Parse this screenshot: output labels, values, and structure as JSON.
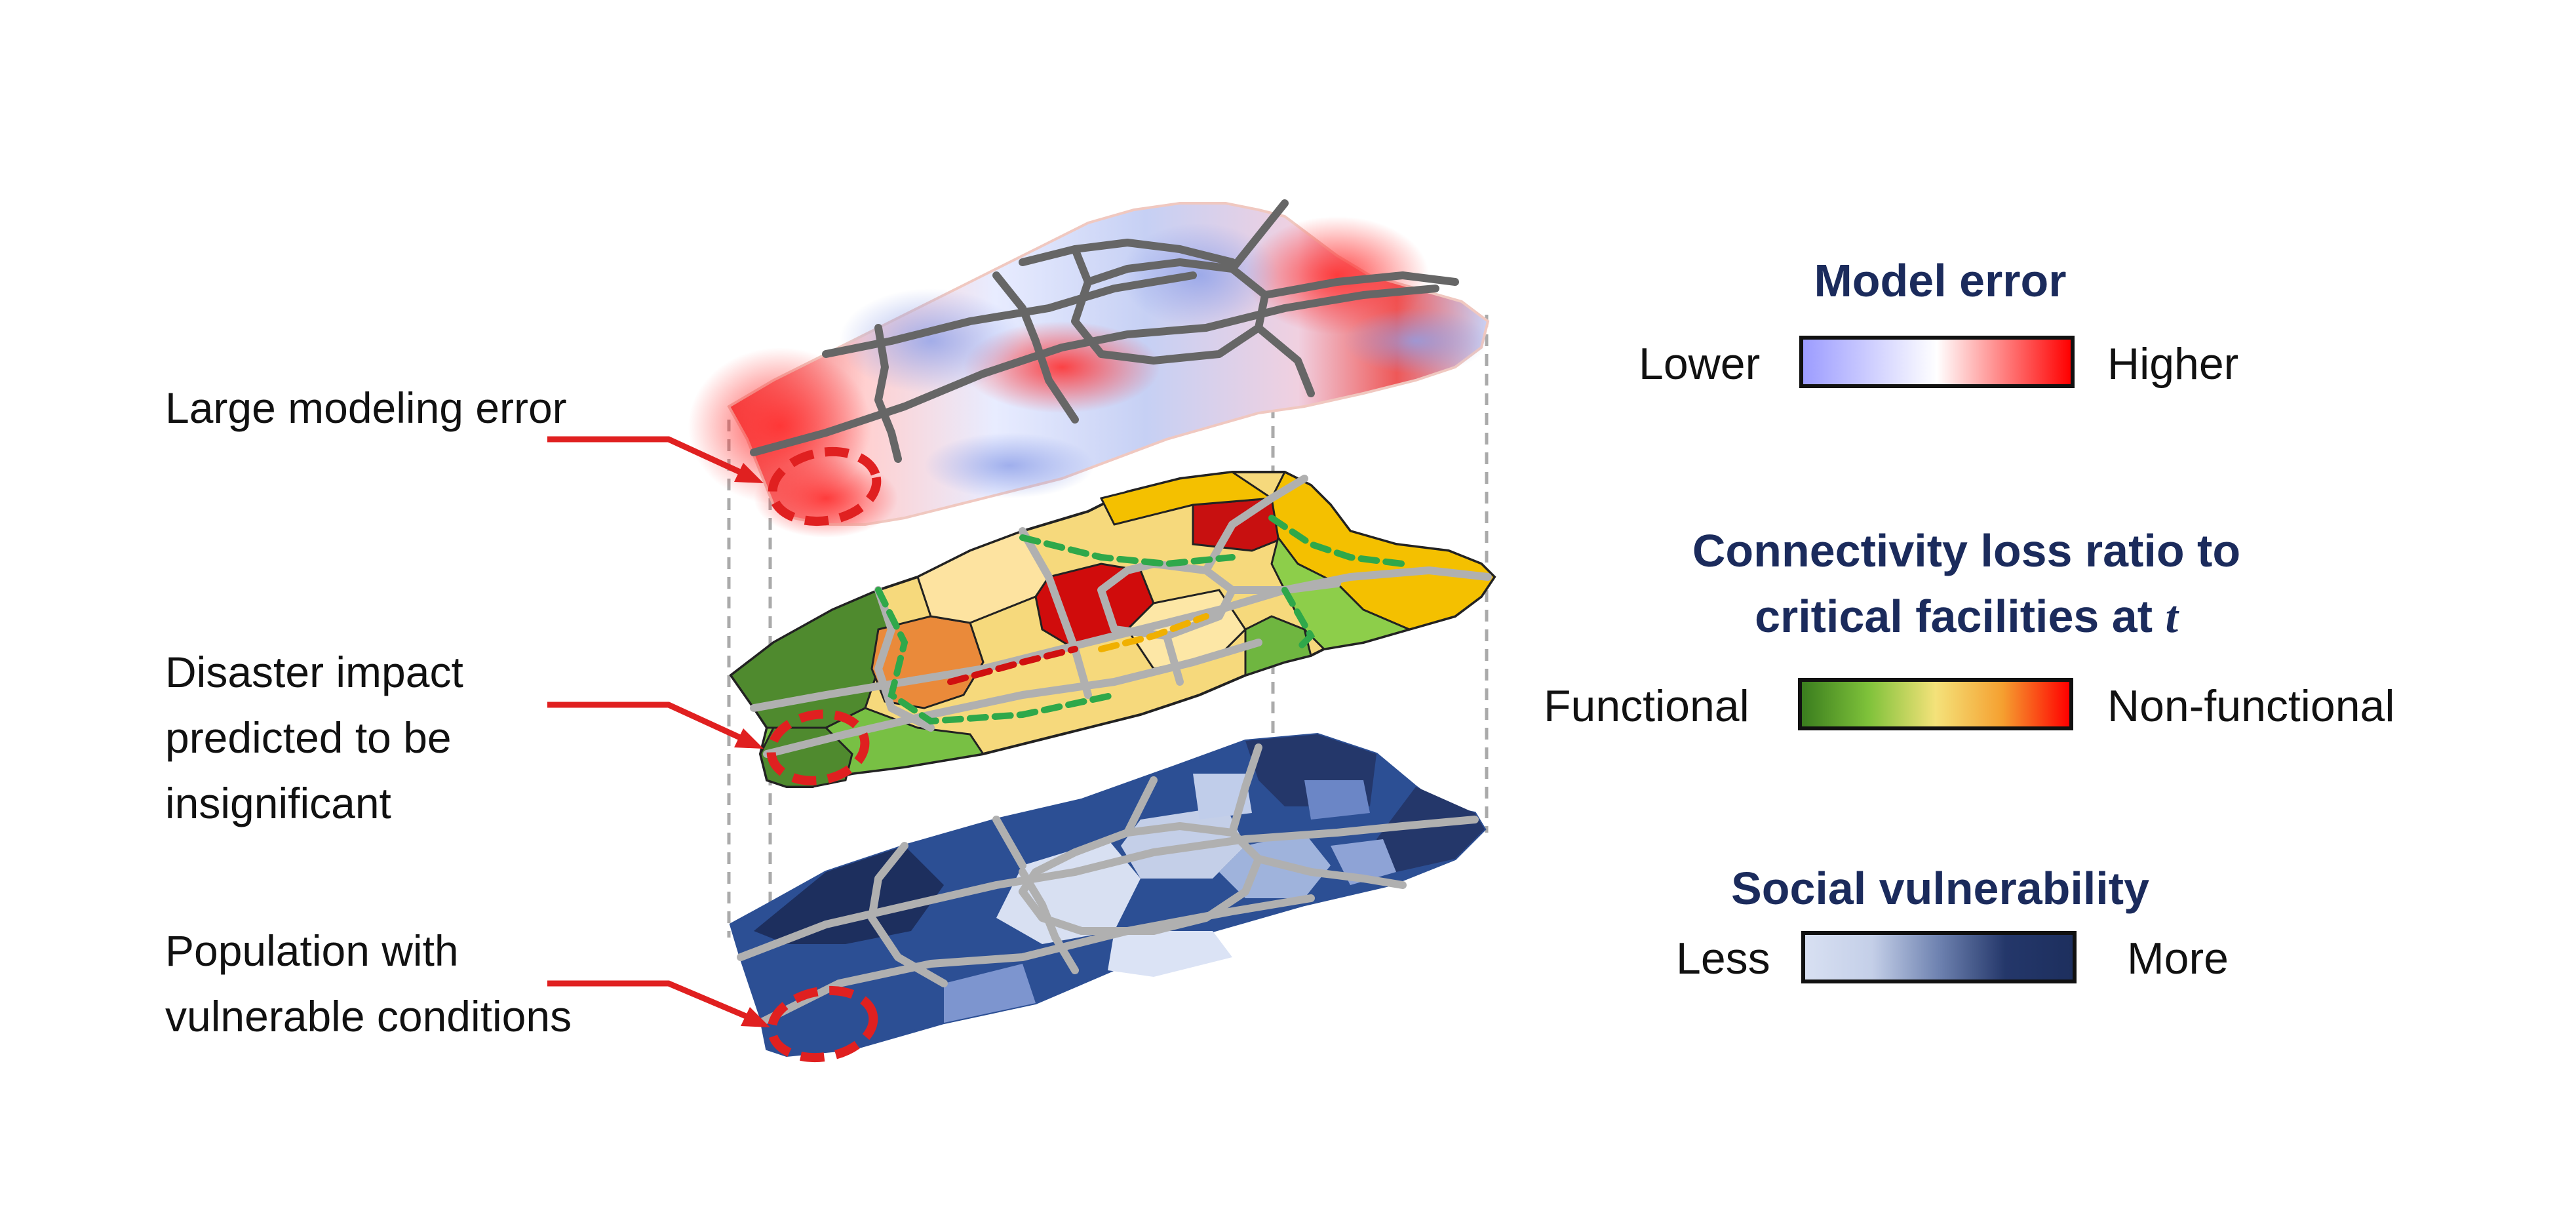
{
  "callouts": {
    "modeling_error": "Large modeling error",
    "disaster_impact": "Disaster impact\npredicted to be\ninsignificant",
    "vulnerable": "Population with\nvulnerable conditions"
  },
  "legends": {
    "model_error": {
      "title": "Model error",
      "low": "Lower",
      "high": "Higher",
      "colors": [
        "#9c9cff",
        "#ffffff",
        "#ff0000"
      ]
    },
    "connectivity": {
      "title": "Connectivity loss ratio to\ncritical facilities at",
      "title_var": "t",
      "low": "Functional",
      "high": "Non-functional",
      "colors": [
        "#3a7d1e",
        "#7fc23a",
        "#f4e27a",
        "#f5a030",
        "#ff0000"
      ]
    },
    "social_vulnerability": {
      "title": "Social vulnerability",
      "low": "Less",
      "high": "More",
      "colors": [
        "#d8e0f2",
        "#c4cfe8",
        "#6e82b0",
        "#24376a",
        "#1d2f5e"
      ]
    }
  },
  "colors": {
    "callout_arrow": "#e02020",
    "highlight_ellipse": "#e02020",
    "road_dark": "#666666",
    "road_light": "#b0b0b0",
    "guide_lines": "#aaaaaa",
    "title_navy": "#1b2b5c"
  }
}
